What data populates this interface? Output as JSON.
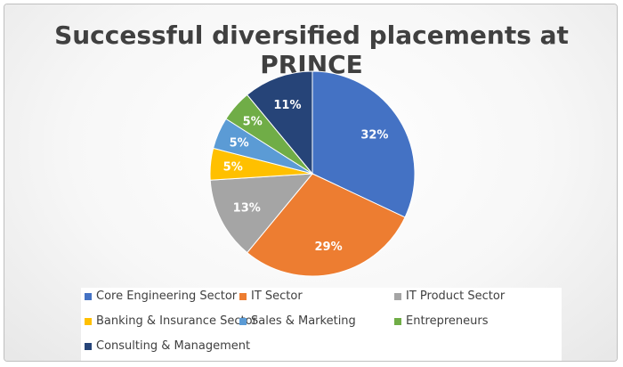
{
  "chart_data": {
    "type": "pie",
    "title": "Successful diversified placements at PRINCE",
    "labels": [
      "Core Engineering Sector",
      "IT Sector",
      "IT Product Sector",
      "Banking & Insurance Sector",
      "Sales & Marketing",
      "Entrepreneurs",
      "Consulting & Management"
    ],
    "values": [
      32,
      29,
      13,
      5,
      5,
      5,
      11
    ],
    "data_labels": [
      "32%",
      "29%",
      "13%",
      "5%",
      "5%",
      "5%",
      "11%"
    ],
    "colors": [
      "#4472c4",
      "#ed7d31",
      "#a5a5a5",
      "#ffc000",
      "#5b9bd5",
      "#70ad47",
      "#264478"
    ],
    "label_color": "#ffffff",
    "start_angle_deg": 0,
    "direction": "clockwise",
    "legend": "bottom"
  }
}
